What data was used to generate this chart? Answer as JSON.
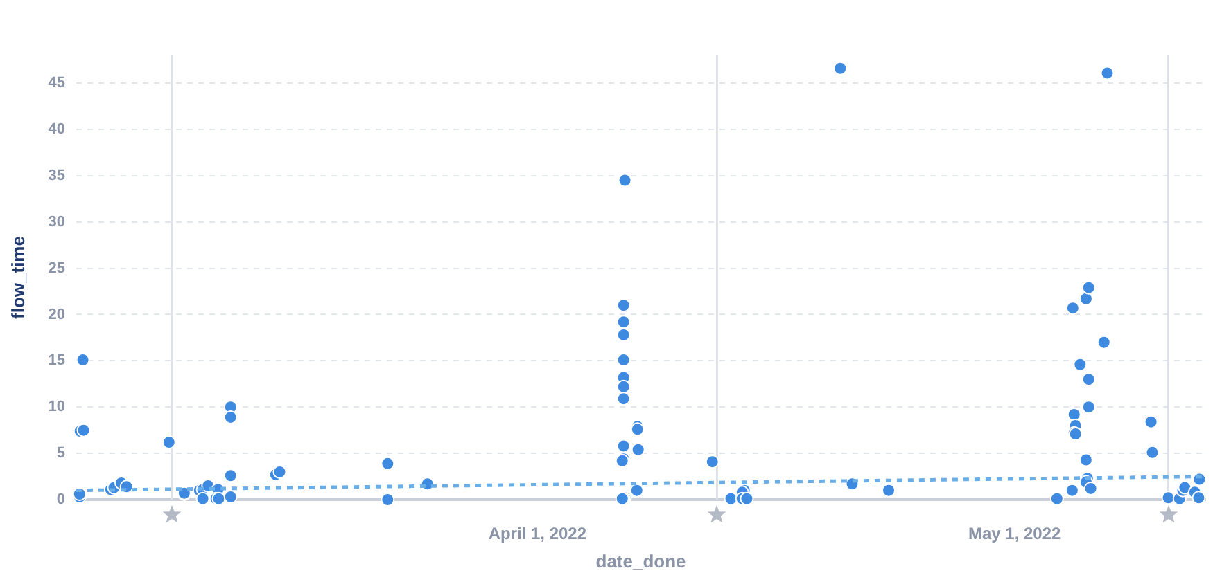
{
  "chart_data": {
    "type": "scatter",
    "xlabel": "date_done",
    "ylabel": "flow_time",
    "xlim": [
      "2022-03-03T00:00",
      "2022-05-13T00:00"
    ],
    "xticks": [
      {
        "value": "2022-04-01",
        "label": "April 1, 2022"
      },
      {
        "value": "2022-05-01",
        "label": "May 1, 2022"
      }
    ],
    "ylim": [
      0,
      48
    ],
    "yticks": [
      0,
      5,
      10,
      15,
      20,
      25,
      30,
      35,
      40,
      45
    ],
    "grid": "y",
    "legend": false,
    "marker": "circle",
    "ref_lines": [
      {
        "axis": "x",
        "value": "2022-03-09T00:00",
        "label": null,
        "color": "#dde1e8"
      },
      {
        "axis": "x",
        "value": "2022-04-12T07:00",
        "label": null,
        "color": "#dde1e8"
      },
      {
        "axis": "x",
        "value": "2022-05-10T16:00",
        "label": null,
        "color": "#dde1e8"
      }
    ],
    "series": [
      {
        "color": "#3d8ae0",
        "x": [
          "2022-03-03T10:00",
          "2022-03-03T06:00",
          "2022-03-03T11:00",
          "2022-03-03T05:00",
          "2022-03-03T05:00",
          "2022-03-05T04:00",
          "2022-03-05T09:00",
          "2022-03-05T20:00",
          "2022-03-06T04:00",
          "2022-03-08T20:00",
          "2022-03-09T19:00",
          "2022-03-09T19:00",
          "2022-03-10T18:00",
          "2022-03-10T23:00",
          "2022-03-11T07:00",
          "2022-03-11T22:00",
          "2022-03-10T23:00",
          "2022-03-11T19:00",
          "2022-03-11T23:00",
          "2022-03-12T17:00",
          "2022-03-12T17:00",
          "2022-03-12T17:00",
          "2022-03-12T17:00",
          "2022-03-15T13:00",
          "2022-03-15T19:00",
          "2022-03-22T14:00",
          "2022-03-22T14:00",
          "2022-03-25T02:00",
          "2022-04-06T12:00",
          "2022-04-06T10:00",
          "2022-04-06T10:00",
          "2022-04-06T10:00",
          "2022-04-06T10:00",
          "2022-04-06T10:00",
          "2022-04-06T10:00",
          "2022-04-06T10:00",
          "2022-04-07T07:00",
          "2022-04-07T07:00",
          "2022-04-06T10:00",
          "2022-04-07T08:00",
          "2022-04-06T10:00",
          "2022-04-06T08:00",
          "2022-04-07T06:00",
          "2022-04-06T12:00",
          "2022-04-06T10:00",
          "2022-04-06T08:00",
          "2022-04-12T00:00",
          "2022-04-14T00:00",
          "2022-04-13T21:00",
          "2022-04-13T04:00",
          "2022-04-13T21:00",
          "2022-04-14T04:00",
          "2022-04-20T01:00",
          "2022-04-20T19:00",
          "2022-04-23T02:00",
          "2022-05-03T16:00",
          "2022-05-04T15:00",
          "2022-05-04T16:00",
          "2022-05-05T12:00",
          "2022-05-05T16:00",
          "2022-05-06T20:00",
          "2022-05-06T15:00",
          "2022-05-05T03:00",
          "2022-05-05T16:00",
          "2022-05-05T16:00",
          "2022-05-04T18:00",
          "2022-05-04T20:00",
          "2022-05-04T18:00",
          "2022-05-04T20:00",
          "2022-05-09T14:00",
          "2022-05-09T16:00",
          "2022-05-05T12:00",
          "2022-05-05T14:00",
          "2022-05-05T12:00",
          "2022-05-05T19:00",
          "2022-05-10T16:00",
          "2022-05-11T09:00",
          "2022-05-11T14:00",
          "2022-05-11T17:00",
          "2022-05-12T08:00",
          "2022-05-12T14:00",
          "2022-05-12T15:00"
        ],
        "values": [
          15.1,
          7.4,
          7.5,
          0.3,
          0.6,
          1.1,
          1.3,
          1.8,
          1.4,
          6.2,
          0.6,
          0.7,
          1,
          1.1,
          1.5,
          1.1,
          0.1,
          0.1,
          0.1,
          0.3,
          10,
          8.9,
          2.6,
          2.7,
          3,
          3.9,
          0,
          1.7,
          34.5,
          21,
          19.2,
          17.8,
          15.1,
          13.2,
          12.2,
          10.9,
          7.9,
          7.6,
          5.8,
          5.4,
          4.4,
          4.2,
          1,
          0.2,
          0.1,
          0.1,
          4.1,
          1,
          0.8,
          0.1,
          0.1,
          0.1,
          46.6,
          1.7,
          1,
          0.1,
          1,
          20.7,
          21.7,
          22.9,
          46.1,
          17,
          14.6,
          13,
          10,
          9.2,
          8,
          7.2,
          7.1,
          8.4,
          5.1,
          4.3,
          2.3,
          1.9,
          1.2,
          0.2,
          0.1,
          1,
          1.3,
          0.8,
          0.2,
          2.2
        ]
      },
      {
        "type": "line",
        "color": "#6aaee8",
        "line_style": "dashed",
        "marker": "none",
        "x": [
          "2022-03-03T00:00",
          "2022-05-13T00:00"
        ],
        "values": [
          1,
          2.5
        ]
      }
    ]
  }
}
